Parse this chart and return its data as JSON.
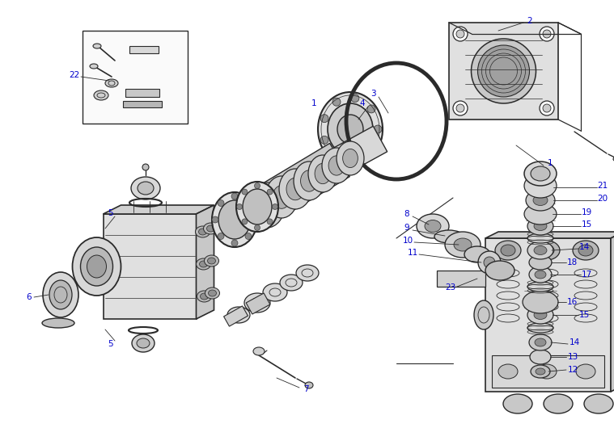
{
  "bg_color": "#ffffff",
  "line_color": "#2a2a2a",
  "label_color": "#0000cc",
  "fig_width": 7.59,
  "fig_height": 5.3,
  "dpi": 100
}
